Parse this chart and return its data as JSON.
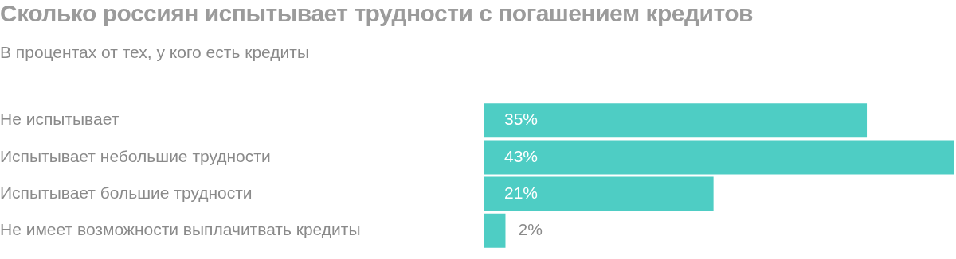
{
  "chart_data": {
    "type": "bar",
    "orientation": "horizontal",
    "title": "Сколько россиян испытывает трудности с погашением кредитов",
    "subtitle": "В процентах от тех, у кого есть кредиты",
    "categories": [
      "Не испытывает",
      "Испытывает небольшие трудности",
      "Испытывает большие трудности",
      "Не имеет возможности выплачитвать кредиты"
    ],
    "values": [
      35,
      43,
      21,
      2
    ],
    "color": "#4ecdc4",
    "value_labels": [
      "35%",
      "43%",
      "21%",
      "2%"
    ]
  }
}
